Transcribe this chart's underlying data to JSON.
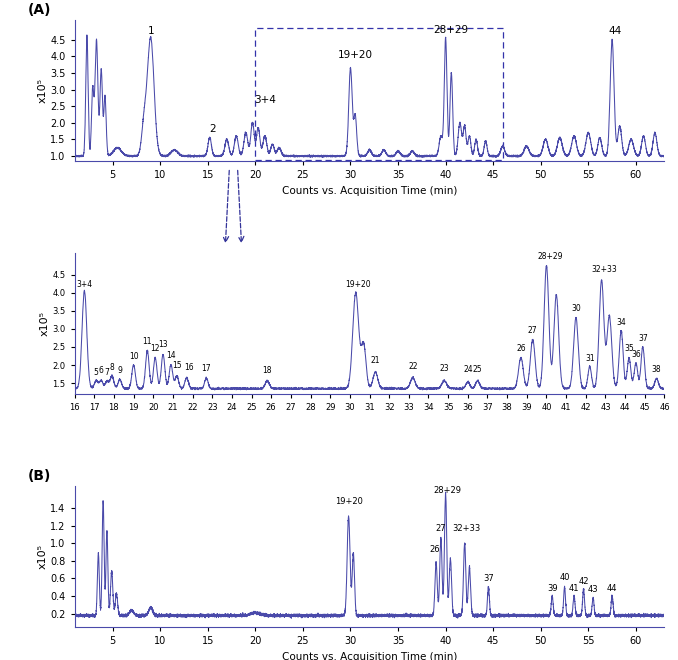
{
  "line_color": "#4a4aaa",
  "background_color": "#ffffff",
  "panel_A_ylim": [
    0.85,
    5.1
  ],
  "panel_A_yticks": [
    1.0,
    1.5,
    2.0,
    2.5,
    3.0,
    3.5,
    4.0,
    4.5
  ],
  "panel_A_xlim": [
    1,
    63
  ],
  "panel_A_xticks": [
    5,
    10,
    15,
    20,
    25,
    30,
    35,
    40,
    45,
    50,
    55,
    60
  ],
  "panel_B_ylim": [
    1.2,
    5.1
  ],
  "panel_B_yticks": [
    1.5,
    2.0,
    2.5,
    3.0,
    3.5,
    4.0,
    4.5
  ],
  "panel_B_xlim": [
    16,
    46
  ],
  "panel_B_xticks": [
    16,
    17,
    18,
    19,
    20,
    21,
    22,
    23,
    24,
    25,
    26,
    27,
    28,
    29,
    30,
    31,
    32,
    33,
    34,
    35,
    36,
    37,
    38,
    39,
    40,
    41,
    42,
    43,
    44,
    45,
    46
  ],
  "panel_C_ylim": [
    0.05,
    1.65
  ],
  "panel_C_yticks": [
    0.2,
    0.4,
    0.6,
    0.8,
    1.0,
    1.2,
    1.4
  ],
  "panel_C_xlim": [
    1,
    63
  ],
  "panel_C_xticks": [
    5,
    10,
    15,
    20,
    25,
    30,
    35,
    40,
    45,
    50,
    55,
    60
  ],
  "xlabel": "Counts vs. Acquisition Time (min)",
  "ylabel": "x10⁵"
}
